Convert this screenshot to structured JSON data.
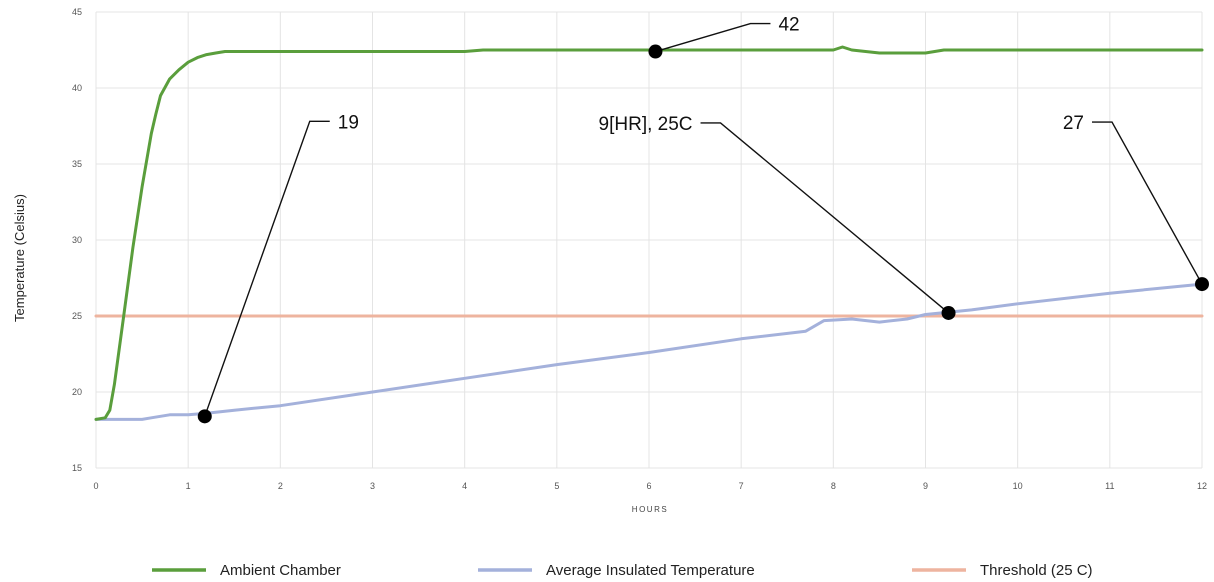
{
  "chart_data": {
    "type": "line",
    "xlabel": "HOURS",
    "ylabel": "Temperature (Celsius)",
    "xlim": [
      0,
      12
    ],
    "ylim": [
      15,
      45
    ],
    "x_ticks": [
      "0",
      "1",
      "2",
      "3",
      "4",
      "5",
      "6",
      "7",
      "8",
      "9",
      "10",
      "11",
      "12"
    ],
    "y_ticks": [
      "15",
      "20",
      "25",
      "30",
      "35",
      "40",
      "45"
    ],
    "grid": true,
    "legend_position": "bottom",
    "series": [
      {
        "name": "Ambient Chamber",
        "color": "#5a9e3c",
        "x": [
          0,
          0.1,
          0.15,
          0.2,
          0.3,
          0.4,
          0.5,
          0.6,
          0.65,
          0.7,
          0.8,
          0.9,
          1.0,
          1.1,
          1.2,
          1.3,
          1.4,
          1.5,
          2,
          3,
          4,
          4.2,
          5,
          6,
          7,
          8,
          8.1,
          8.2,
          8.5,
          9,
          9.2,
          10,
          11,
          12
        ],
        "y": [
          18.2,
          18.3,
          18.8,
          20.5,
          25.0,
          29.5,
          33.5,
          37.0,
          38.3,
          39.5,
          40.6,
          41.2,
          41.7,
          42.0,
          42.2,
          42.3,
          42.4,
          42.4,
          42.4,
          42.4,
          42.4,
          42.5,
          42.5,
          42.5,
          42.5,
          42.5,
          42.7,
          42.5,
          42.3,
          42.3,
          42.5,
          42.5,
          42.5,
          42.5
        ]
      },
      {
        "name": "Average Insulated Temperature",
        "color": "#a4b1db",
        "x": [
          0,
          0.5,
          0.6,
          0.8,
          1.0,
          1.2,
          1.5,
          2,
          3,
          4,
          5,
          6,
          7,
          7.7,
          7.9,
          8.2,
          8.5,
          8.8,
          9,
          9.5,
          10,
          11,
          12
        ],
        "y": [
          18.2,
          18.2,
          18.3,
          18.5,
          18.5,
          18.6,
          18.8,
          19.1,
          20.0,
          20.9,
          21.8,
          22.6,
          23.5,
          24.0,
          24.7,
          24.8,
          24.6,
          24.8,
          25.1,
          25.4,
          25.8,
          26.5,
          27.1
        ]
      },
      {
        "name": "Threshold (25 C)",
        "color": "#eeb49f",
        "x": [
          0,
          12
        ],
        "y": [
          25,
          25
        ]
      }
    ],
    "annotations": [
      {
        "text": "42",
        "x": 6.07,
        "y": 42.4
      },
      {
        "text": "19",
        "x": 1.18,
        "y": 18.4
      },
      {
        "text": "9[HR], 25C",
        "x": 9.25,
        "y": 25.2
      },
      {
        "text": "27",
        "x": 12.0,
        "y": 27.1
      }
    ]
  }
}
